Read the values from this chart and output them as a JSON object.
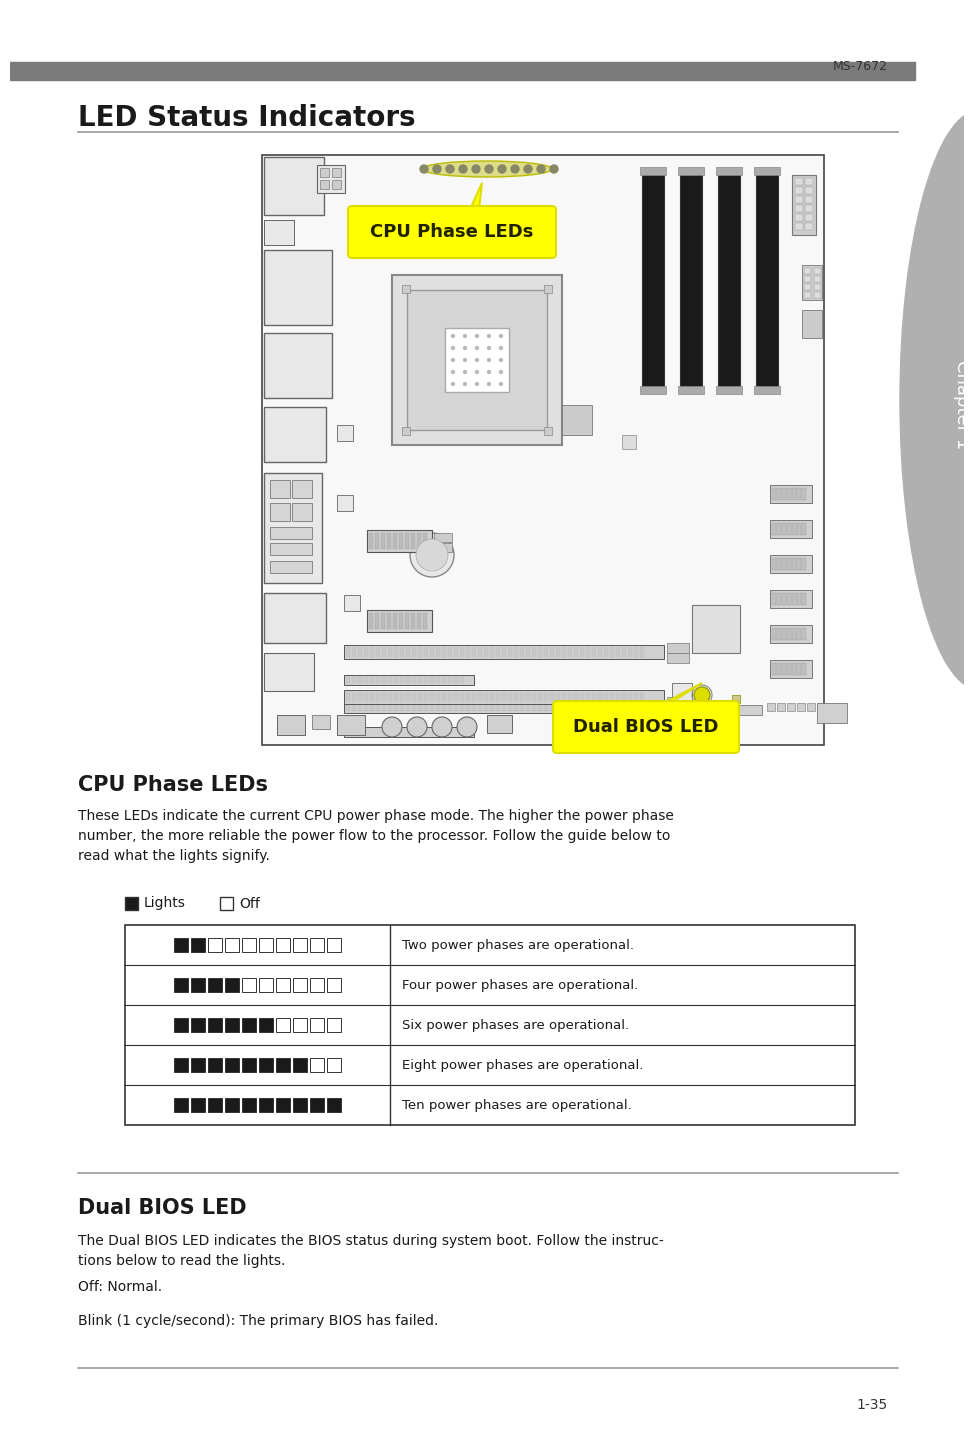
{
  "page_header_text": "MS-7672",
  "section_title": "LED Status Indicators",
  "chapter_label": "Chapter 1",
  "cpu_phase_title": "CPU Phase LEDs",
  "cpu_phase_body": "These LEDs indicate the current CPU power phase mode. The higher the power phase\nnumber, the more reliable the power flow to the processor. Follow the guide below to\nread what the lights signify.",
  "legend_lights": "Lights",
  "legend_off": "Off",
  "table_rows": [
    {
      "on": 2,
      "off": 8,
      "label": "Two power phases are operational."
    },
    {
      "on": 4,
      "off": 6,
      "label": "Four power phases are operational."
    },
    {
      "on": 6,
      "off": 4,
      "label": "Six power phases are operational."
    },
    {
      "on": 8,
      "off": 2,
      "label": "Eight power phases are operational."
    },
    {
      "on": 10,
      "off": 0,
      "label": "Ten power phases are operational."
    }
  ],
  "dual_bios_title": "Dual BIOS LED",
  "dual_bios_body1": "The Dual BIOS LED indicates the BIOS status during system boot. Follow the instruc-\ntions below to read the lights.",
  "dual_bios_body2": "Off: Normal.",
  "dual_bios_body3": "Blink (1 cycle/second): The primary BIOS has failed.",
  "page_number": "1-35",
  "header_bar_color": "#7a7a7a",
  "chapter_tab_color": "#b0b0b0",
  "bg_color": "#ffffff",
  "text_color": "#1a1a1a",
  "title_color": "#1a1a1a",
  "cpu_label_bg": "#ffff00",
  "dual_label_bg": "#ffff00",
  "callout_text_color": "#1a1a00",
  "table_border_color": "#333333",
  "led_on_color": "#1a1a1a",
  "led_off_color": "#ffffff",
  "led_border_color": "#333333",
  "board_bg": "#f8f8f8",
  "board_edge": "#444444",
  "comp_fill": "#e8e8e8",
  "comp_edge": "#666666",
  "slot_fill": "#d0d0d0",
  "slot_edge": "#555555"
}
